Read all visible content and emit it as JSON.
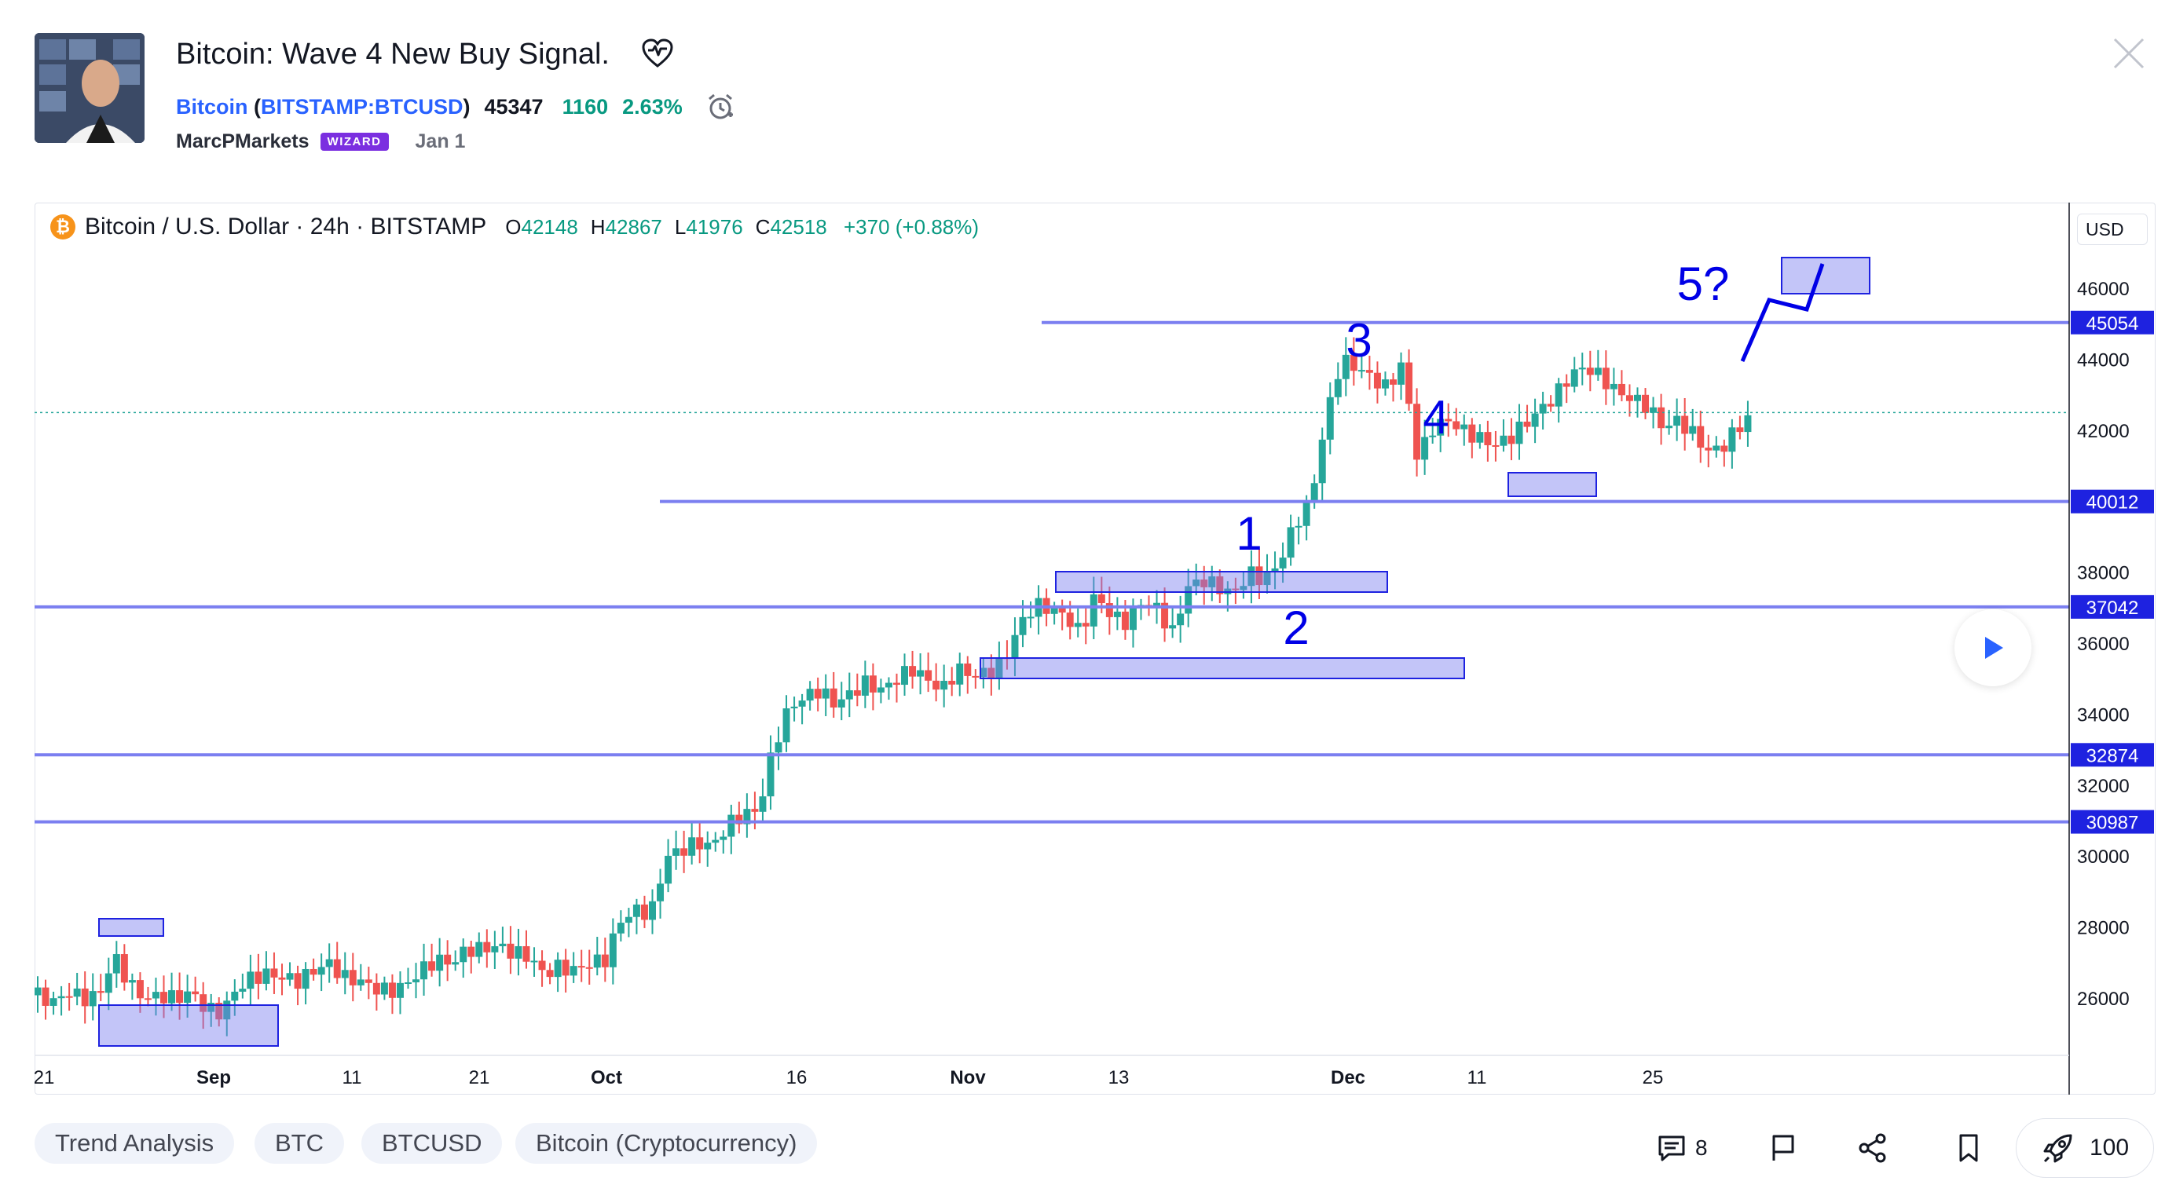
{
  "idea": {
    "title": "Bitcoin: Wave 4 New Buy Signal.",
    "symbol_name": "Bitcoin",
    "symbol_ticker": "BITSTAMP:BTCUSD",
    "price": "45347",
    "change": "1160",
    "change_percent": "2.63%",
    "author": "MarcPMarkets",
    "author_badge": "WIZARD",
    "published": "Jan 1"
  },
  "chart": {
    "legend_title": "Bitcoin / U.S. Dollar · 24h · BITSTAMP",
    "currency_icon": "₿",
    "ohlc": {
      "o_label": "O",
      "o": "42148",
      "h_label": "H",
      "h": "42867",
      "l_label": "L",
      "l": "41976",
      "c_label": "C",
      "c": "42518",
      "change": "+370 (+0.88%)"
    },
    "currency": "USD",
    "price_ticks": [
      "46000",
      "44000",
      "42000",
      "38000",
      "36000",
      "34000",
      "32000",
      "30000",
      "28000",
      "26000"
    ],
    "level_tags": [
      "45054",
      "40012",
      "37042",
      "32874",
      "30987"
    ],
    "date_ticks": [
      "21",
      "Sep",
      "11",
      "21",
      "Oct",
      "16",
      "Nov",
      "13",
      "Dec",
      "11",
      "25"
    ],
    "wave_labels": [
      "1",
      "2",
      "3",
      "4",
      "5?"
    ],
    "colors": {
      "up": "#26a69a",
      "down": "#ef5350",
      "level": "#7b7ff0",
      "wave": "#0000e6",
      "tag_bg": "#1e22e0"
    }
  },
  "chart_data": {
    "type": "candlestick",
    "title": "Bitcoin / U.S. Dollar · 24h · BITSTAMP",
    "ylim": [
      24500,
      48500
    ],
    "horizontal_levels": [
      45054,
      40012,
      37042,
      32874,
      30987
    ],
    "last_close": 42518
  },
  "tags": [
    "Trend Analysis",
    "BTC",
    "BTCUSD",
    "Bitcoin (Cryptocurrency)"
  ],
  "actions": {
    "comments_count": "8",
    "boost_count": "100"
  },
  "icons": {
    "heart": "heart-icon",
    "alarm": "alarm-clock-icon",
    "close": "close-icon",
    "play": "play-icon",
    "comments": "comment-icon",
    "flag": "flag-icon",
    "share": "share-icon",
    "bookmark": "bookmark-icon",
    "boost": "rocket-icon"
  }
}
